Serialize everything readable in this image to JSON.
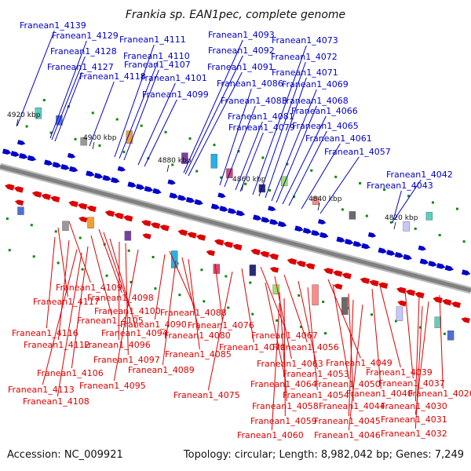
{
  "title": "Frankia sp. EAN1pec, complete genome",
  "accession": "Accession: NC_009921",
  "summary": "Topology: circular; Length: 8,982,042 bp; Genes: 7,249",
  "colors": {
    "forward": "#0000cc",
    "reverse": "#dd0000",
    "backbone": "#808080",
    "marker": "#0a8a0a"
  },
  "scale_ticks": [
    "4920 kbp",
    "4900 kbp",
    "4880 kbp",
    "4860 kbp",
    "4840 kbp",
    "4820 kbp"
  ],
  "forward_genes": [
    "Franean1_4139",
    "Franean1_4129",
    "Franean1_4128",
    "Franean1_4127",
    "Franean1_4118",
    "Franean1_4111",
    "Franean1_4110",
    "Franean1_4107",
    "Franean1_4101",
    "Franean1_4099",
    "Franean1_4093",
    "Franean1_4092",
    "Franean1_4091",
    "Franean1_4086",
    "Franean1_4083",
    "Franean1_4081",
    "Franean1_4079",
    "Franean1_4073",
    "Franean1_4072",
    "Franean1_4071",
    "Franean1_4069",
    "Franean1_4068",
    "Franean1_4066",
    "Franean1_4065",
    "Franean1_4061",
    "Franean1_4057",
    "Franean1_4042",
    "Franean1_4043"
  ],
  "reverse_genes": [
    "Franean1_4109",
    "Franean1_4117",
    "Franean1_4098",
    "Franean1_4100",
    "Franean1_4105",
    "Franean1_4116",
    "Franean1_4094",
    "Franean1_4112",
    "Franean1_4096",
    "Franean1_4097",
    "Franean1_4106",
    "Franean1_4113",
    "Franean1_4095",
    "Franean1_4108",
    "Franean1_4088",
    "Franean1_4090",
    "Franean1_4080",
    "Franean1_4085",
    "Franean1_4089",
    "Franean1_4076",
    "Franean1_4067",
    "Franean1_4070",
    "Franean1_4075",
    "Franean1_4056",
    "Franean1_4063",
    "Franean1_4049",
    "Franean1_4053",
    "Franean1_4064",
    "Franean1_4050",
    "Franean1_4039",
    "Franean1_4054",
    "Franean1_4040",
    "Franean1_4037",
    "Franean1_4058",
    "Franean1_4044",
    "Franean1_4026",
    "Franean1_4030",
    "Franean1_4059",
    "Franean1_4045",
    "Franean1_4031",
    "Franean1_4060",
    "Franean1_4046",
    "Franean1_4032"
  ]
}
